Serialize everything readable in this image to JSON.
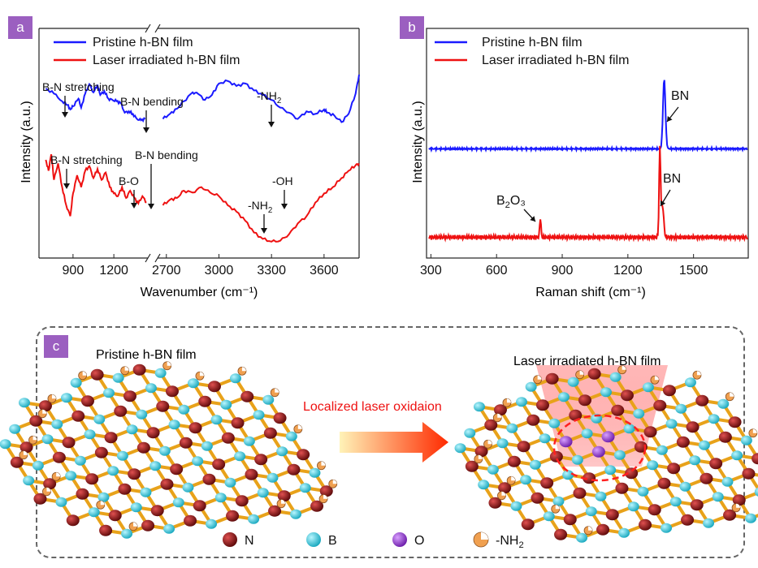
{
  "panels": {
    "a": "a",
    "b": "b",
    "c": "c"
  },
  "chart_data": [
    {
      "type": "line",
      "panel": "a",
      "xlabel": "Wavenumber (cm⁻¹)",
      "ylabel": "Intensity (a.u.)",
      "x_axis_break": [
        1450,
        2650
      ],
      "xticks": [
        900,
        1200,
        2700,
        3000,
        3300,
        3600
      ],
      "xlim_left": [
        650,
        1450
      ],
      "xlim_right": [
        2650,
        3800
      ],
      "legend_position": "top-left",
      "series": [
        {
          "name": "Pristine h-BN film",
          "color": "#1a1aff",
          "x": [
            700,
            760,
            820,
            860,
            880,
            900,
            940,
            960,
            990,
            1020,
            1050,
            1080,
            1100,
            1130,
            1160,
            1190,
            1220,
            1250,
            1280,
            1310,
            1340,
            1370,
            1400,
            1430,
            2680,
            2720,
            2760,
            2800,
            2850,
            2880,
            2920,
            2960,
            3000,
            3050,
            3100,
            3150,
            3200,
            3250,
            3300,
            3350,
            3400,
            3450,
            3500,
            3550,
            3600,
            3620,
            3660,
            3700,
            3740,
            3780,
            3800
          ],
          "y": [
            0.78,
            0.7,
            0.58,
            0.52,
            0.45,
            0.5,
            0.62,
            0.48,
            0.7,
            0.85,
            0.72,
            0.84,
            0.68,
            0.74,
            0.62,
            0.6,
            0.58,
            0.55,
            0.4,
            0.42,
            0.38,
            0.3,
            0.28,
            0.3,
            0.3,
            0.38,
            0.46,
            0.58,
            0.72,
            0.7,
            0.6,
            0.68,
            0.86,
            0.9,
            0.82,
            0.86,
            0.75,
            0.68,
            0.6,
            0.48,
            0.4,
            0.3,
            0.42,
            0.38,
            0.45,
            0.4,
            0.35,
            0.25,
            0.38,
            0.7,
            1.0
          ]
        },
        {
          "name": "Laser irradiated h-BN film",
          "color": "#ee1111",
          "x": [
            700,
            720,
            740,
            760,
            790,
            820,
            850,
            880,
            900,
            930,
            960,
            990,
            1020,
            1050,
            1080,
            1110,
            1140,
            1170,
            1200,
            1230,
            1260,
            1290,
            1320,
            1350,
            1380,
            1410,
            1440,
            2680,
            2720,
            2760,
            2800,
            2850,
            2900,
            2950,
            3000,
            3050,
            3100,
            3150,
            3200,
            3250,
            3300,
            3350,
            3400,
            3450,
            3500,
            3550,
            3600,
            3650,
            3700,
            3740,
            3780,
            3800
          ],
          "y": [
            0.92,
            0.8,
            0.98,
            0.7,
            0.88,
            0.62,
            0.42,
            0.3,
            0.55,
            0.75,
            0.62,
            0.8,
            0.85,
            0.72,
            0.82,
            0.7,
            0.78,
            0.62,
            0.55,
            0.52,
            0.62,
            0.5,
            0.58,
            0.5,
            0.44,
            0.52,
            0.45,
            0.42,
            0.48,
            0.5,
            0.58,
            0.56,
            0.62,
            0.56,
            0.52,
            0.42,
            0.35,
            0.25,
            0.12,
            0.05,
            0.02,
            0.03,
            0.1,
            0.22,
            0.3,
            0.45,
            0.55,
            0.62,
            0.72,
            0.8,
            0.86,
            0.88
          ]
        }
      ],
      "annotations": [
        {
          "text": "B-N stretching",
          "series": 0,
          "x": 860
        },
        {
          "text": "B-N bending",
          "series": 0,
          "x": 1420
        },
        {
          "text": "-NH₂",
          "series": 0,
          "x": 3300
        },
        {
          "text": "B-N stretching",
          "series": 1,
          "x": 860
        },
        {
          "text": "B-N bending",
          "series": 1,
          "x": 1400
        },
        {
          "text": "B-O",
          "series": 1,
          "x": 1360
        },
        {
          "text": "-NH₂",
          "series": 1,
          "x": 3320
        },
        {
          "text": "-OH",
          "series": 1,
          "x": 3440
        }
      ]
    },
    {
      "type": "line",
      "panel": "b",
      "xlabel": "Raman shift (cm⁻¹)",
      "ylabel": "Intensity (a.u.)",
      "xticks": [
        300,
        600,
        900,
        1200,
        1500
      ],
      "xlim": [
        280,
        1750
      ],
      "legend_position": "top-left",
      "series": [
        {
          "name": "Pristine h-BN film",
          "color": "#1a1aff",
          "peaks": [
            {
              "x": 1366,
              "height": 0.78,
              "width": 8
            }
          ],
          "baseline": 0.06
        },
        {
          "name": "Laser irradiated h-BN film",
          "color": "#ee1111",
          "peaks": [
            {
              "x": 1346,
              "height": 0.95,
              "width": 5
            },
            {
              "x": 1358,
              "height": 0.35,
              "width": 8
            },
            {
              "x": 800,
              "height": 0.22,
              "width": 4
            }
          ],
          "baseline": 0.05
        }
      ],
      "annotations": [
        {
          "text": "BN",
          "series": 0,
          "x": 1366
        },
        {
          "text": "BN",
          "series": 1,
          "x": 1346
        },
        {
          "text": "B₂O₃",
          "series": 1,
          "x": 800
        }
      ]
    }
  ],
  "schematic": {
    "left_title": "Pristine h-BN film",
    "right_title": "Laser irradiated h-BN film",
    "arrow_label": "Localized laser oxidaion",
    "legend": [
      {
        "label": "N",
        "color": "#8b0f0f"
      },
      {
        "label": "B",
        "color": "#29c8d8"
      },
      {
        "label": "O",
        "color": "#9a3cd9"
      },
      {
        "label": "-NH₂",
        "color": "#f0a050"
      }
    ],
    "colors": {
      "bond": "#e8a21a",
      "arrow_start": "#fff3b8",
      "arrow_end": "#ff2a00",
      "laser": "#ff7a7a",
      "oxidized_ring": "#ff2020"
    }
  }
}
